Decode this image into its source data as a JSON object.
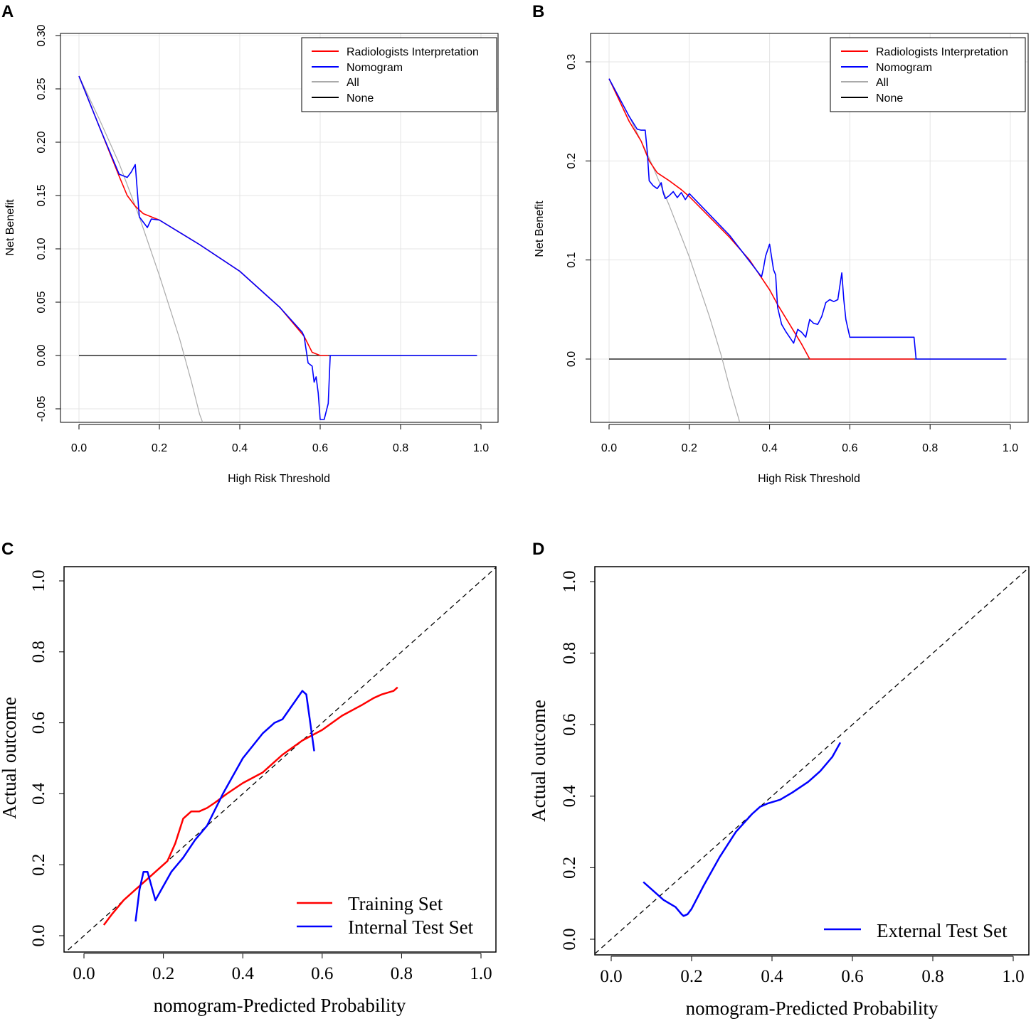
{
  "chart_data": [
    {
      "panel": "A",
      "type": "line",
      "title": "",
      "xlabel": "High Risk Threshold",
      "ylabel": "Net Benefit",
      "xlim": [
        0.0,
        1.0
      ],
      "ylim": [
        -0.06,
        0.3
      ],
      "xticks": [
        "0.0",
        "0.2",
        "0.4",
        "0.6",
        "0.8",
        "1.0"
      ],
      "yticks": [
        "-0.05",
        "0.00",
        "0.05",
        "0.10",
        "0.15",
        "0.20",
        "0.25",
        "0.30"
      ],
      "grid": true,
      "legend": {
        "position": "top-right",
        "entries": [
          "Radiologists Interpretation",
          "Nomogram",
          "All",
          "None"
        ]
      },
      "series": [
        {
          "name": "Radiologists Interpretation",
          "color": "#ff0000",
          "x": [
            0.0,
            0.05,
            0.1,
            0.12,
            0.14,
            0.16,
            0.2,
            0.3,
            0.4,
            0.5,
            0.56,
            0.58,
            0.6,
            0.62
          ],
          "y": [
            0.262,
            0.215,
            0.168,
            0.15,
            0.14,
            0.133,
            0.127,
            0.104,
            0.079,
            0.045,
            0.018,
            0.003,
            0.0,
            0.0
          ]
        },
        {
          "name": "Nomogram",
          "color": "#0000ff",
          "x": [
            0.0,
            0.05,
            0.1,
            0.12,
            0.13,
            0.14,
            0.145,
            0.15,
            0.17,
            0.18,
            0.2,
            0.3,
            0.4,
            0.5,
            0.555,
            0.56,
            0.57,
            0.58,
            0.585,
            0.59,
            0.595,
            0.6,
            0.605,
            0.61,
            0.62,
            0.625,
            0.63,
            0.7,
            0.8,
            0.9,
            0.99
          ],
          "y": [
            0.262,
            0.215,
            0.17,
            0.167,
            0.172,
            0.179,
            0.155,
            0.13,
            0.12,
            0.128,
            0.127,
            0.104,
            0.079,
            0.045,
            0.022,
            0.018,
            -0.007,
            -0.01,
            -0.025,
            -0.02,
            -0.035,
            -0.06,
            -0.06,
            -0.06,
            -0.045,
            0.0,
            0.0,
            0.0,
            0.0,
            0.0,
            0.0
          ]
        },
        {
          "name": "All",
          "color": "#aaaaaa",
          "x": [
            0.0,
            0.05,
            0.1,
            0.15,
            0.2,
            0.25,
            0.28,
            0.3,
            0.31
          ],
          "y": [
            0.262,
            0.222,
            0.18,
            0.13,
            0.075,
            0.016,
            -0.025,
            -0.055,
            -0.065
          ]
        },
        {
          "name": "None",
          "color": "#000000",
          "x": [
            0.0,
            0.99
          ],
          "y": [
            0.0,
            0.0
          ]
        }
      ]
    },
    {
      "panel": "B",
      "type": "line",
      "title": "",
      "xlabel": "High Risk Threshold",
      "ylabel": "Net Benefit",
      "xlim": [
        0.0,
        1.0
      ],
      "ylim": [
        -0.065,
        0.32
      ],
      "xticks": [
        "0.0",
        "0.2",
        "0.4",
        "0.6",
        "0.8",
        "1.0"
      ],
      "yticks": [
        "0.0",
        "0.1",
        "0.2",
        "0.3"
      ],
      "grid": true,
      "legend": {
        "position": "top-right",
        "entries": [
          "Radiologists Interpretation",
          "Nomogram",
          "All",
          "None"
        ]
      },
      "series": [
        {
          "name": "Radiologists Interpretation",
          "color": "#ff0000",
          "x": [
            0.0,
            0.05,
            0.08,
            0.1,
            0.12,
            0.15,
            0.18,
            0.2,
            0.3,
            0.35,
            0.4,
            0.42,
            0.45,
            0.48,
            0.5,
            0.6,
            0.7,
            0.76
          ],
          "y": [
            0.283,
            0.24,
            0.22,
            0.2,
            0.188,
            0.18,
            0.171,
            0.164,
            0.123,
            0.1,
            0.07,
            0.055,
            0.035,
            0.015,
            0.0,
            0.0,
            0.0,
            0.0
          ]
        },
        {
          "name": "Nomogram",
          "color": "#0000ff",
          "x": [
            0.0,
            0.05,
            0.07,
            0.08,
            0.09,
            0.095,
            0.1,
            0.11,
            0.12,
            0.13,
            0.135,
            0.14,
            0.15,
            0.16,
            0.17,
            0.18,
            0.19,
            0.2,
            0.3,
            0.38,
            0.385,
            0.39,
            0.4,
            0.41,
            0.415,
            0.42,
            0.43,
            0.44,
            0.45,
            0.46,
            0.47,
            0.48,
            0.49,
            0.5,
            0.51,
            0.52,
            0.53,
            0.54,
            0.55,
            0.56,
            0.57,
            0.58,
            0.585,
            0.59,
            0.6,
            0.61,
            0.7,
            0.76,
            0.765,
            0.8,
            0.9,
            0.99
          ],
          "y": [
            0.283,
            0.245,
            0.232,
            0.231,
            0.231,
            0.21,
            0.18,
            0.175,
            0.172,
            0.178,
            0.168,
            0.162,
            0.165,
            0.169,
            0.163,
            0.168,
            0.161,
            0.167,
            0.125,
            0.083,
            0.092,
            0.104,
            0.116,
            0.09,
            0.085,
            0.052,
            0.035,
            0.028,
            0.022,
            0.016,
            0.03,
            0.027,
            0.022,
            0.04,
            0.036,
            0.035,
            0.043,
            0.057,
            0.06,
            0.058,
            0.06,
            0.087,
            0.06,
            0.04,
            0.022,
            0.022,
            0.022,
            0.022,
            0.0,
            0.0,
            0.0,
            0.0
          ]
        },
        {
          "name": "All",
          "color": "#aaaaaa",
          "x": [
            0.0,
            0.05,
            0.1,
            0.15,
            0.2,
            0.25,
            0.28,
            0.3,
            0.325
          ],
          "y": [
            0.283,
            0.245,
            0.203,
            0.155,
            0.103,
            0.043,
            0.003,
            -0.028,
            -0.063
          ]
        },
        {
          "name": "None",
          "color": "#000000",
          "x": [
            0.0,
            0.99
          ],
          "y": [
            0.0,
            0.0
          ]
        }
      ]
    },
    {
      "panel": "C",
      "type": "line",
      "title": "",
      "xlabel": "nomogram-Predicted Probability",
      "ylabel": "Actual outcome",
      "xlim": [
        -0.04,
        1.04
      ],
      "ylim": [
        -0.04,
        1.04
      ],
      "xticks": [
        "0.0",
        "0.2",
        "0.4",
        "0.6",
        "0.8",
        "1.0"
      ],
      "yticks": [
        "0.0",
        "0.2",
        "0.4",
        "0.6",
        "0.8",
        "1.0"
      ],
      "grid": false,
      "legend": {
        "position": "bottom-right",
        "entries": [
          "Training Set",
          "Internal Test Set"
        ]
      },
      "series": [
        {
          "name": "Training Set",
          "color": "#ff0000",
          "x": [
            0.05,
            0.07,
            0.1,
            0.13,
            0.16,
            0.19,
            0.21,
            0.23,
            0.25,
            0.27,
            0.29,
            0.31,
            0.33,
            0.36,
            0.4,
            0.45,
            0.5,
            0.55,
            0.6,
            0.65,
            0.7,
            0.73,
            0.75,
            0.78,
            0.79
          ],
          "y": [
            0.03,
            0.06,
            0.1,
            0.13,
            0.16,
            0.19,
            0.21,
            0.26,
            0.33,
            0.35,
            0.35,
            0.36,
            0.375,
            0.4,
            0.43,
            0.46,
            0.51,
            0.55,
            0.58,
            0.62,
            0.65,
            0.67,
            0.68,
            0.69,
            0.7
          ]
        },
        {
          "name": "Internal Test Set",
          "color": "#0000ff",
          "x": [
            0.13,
            0.14,
            0.15,
            0.16,
            0.18,
            0.2,
            0.22,
            0.25,
            0.28,
            0.31,
            0.35,
            0.4,
            0.45,
            0.48,
            0.5,
            0.55,
            0.56,
            0.58
          ],
          "y": [
            0.04,
            0.13,
            0.18,
            0.18,
            0.1,
            0.14,
            0.18,
            0.22,
            0.27,
            0.31,
            0.4,
            0.5,
            0.57,
            0.6,
            0.61,
            0.69,
            0.68,
            0.52
          ]
        },
        {
          "name": "Reference",
          "color": "#000000",
          "x": [
            -0.04,
            1.04
          ],
          "y": [
            -0.04,
            1.04
          ]
        }
      ]
    },
    {
      "panel": "D",
      "type": "line",
      "title": "",
      "xlabel": "nomogram-Predicted Probability",
      "ylabel": "Actual outcome",
      "xlim": [
        -0.04,
        1.04
      ],
      "ylim": [
        -0.04,
        1.04
      ],
      "xticks": [
        "0.0",
        "0.2",
        "0.4",
        "0.6",
        "0.8",
        "1.0"
      ],
      "yticks": [
        "0.0",
        "0.2",
        "0.4",
        "0.6",
        "0.8",
        "1.0"
      ],
      "grid": false,
      "legend": {
        "position": "bottom-right",
        "entries": [
          "External Test Set"
        ]
      },
      "series": [
        {
          "name": "External Test Set",
          "color": "#0000ff",
          "x": [
            0.08,
            0.1,
            0.13,
            0.16,
            0.175,
            0.18,
            0.19,
            0.2,
            0.23,
            0.27,
            0.31,
            0.35,
            0.37,
            0.39,
            0.42,
            0.45,
            0.49,
            0.52,
            0.55,
            0.57
          ],
          "y": [
            0.16,
            0.14,
            0.11,
            0.09,
            0.07,
            0.065,
            0.07,
            0.085,
            0.15,
            0.23,
            0.3,
            0.35,
            0.37,
            0.38,
            0.39,
            0.41,
            0.44,
            0.47,
            0.51,
            0.55
          ]
        },
        {
          "name": "Reference",
          "color": "#000000",
          "x": [
            -0.04,
            1.04
          ],
          "y": [
            -0.04,
            1.04
          ]
        }
      ]
    }
  ]
}
